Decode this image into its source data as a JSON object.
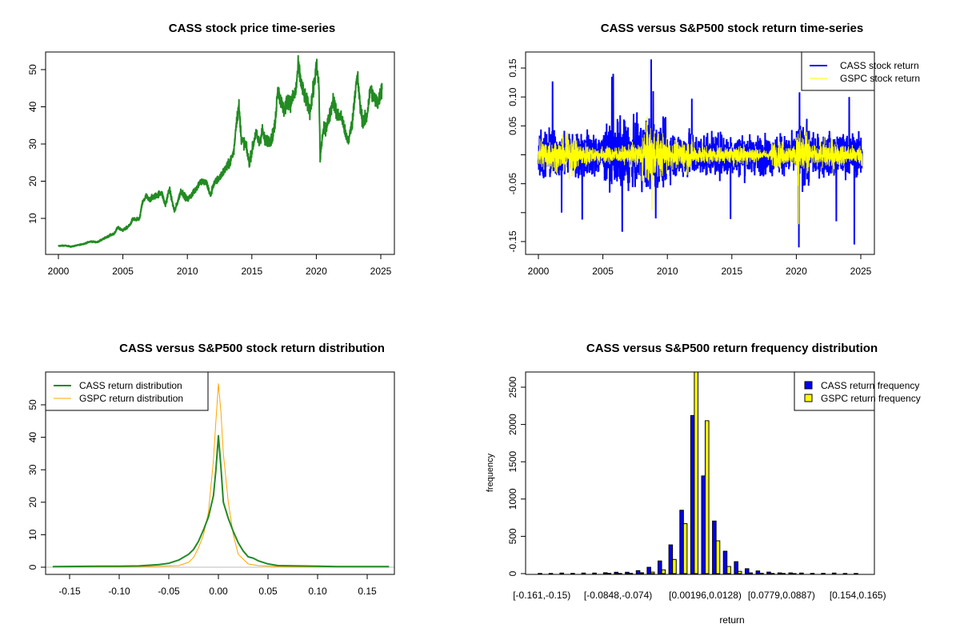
{
  "chart_data": [
    {
      "type": "line",
      "title": "CASS stock price time-series",
      "xlabel": "",
      "ylabel": "",
      "xlim": [
        1999.0,
        2026.0
      ],
      "ylim": [
        0.3,
        54.7
      ],
      "x_ticks": [
        "2000",
        "2005",
        "2010",
        "2015",
        "2020",
        "2025"
      ],
      "y_ticks": [
        "10",
        "20",
        "30",
        "40",
        "50"
      ],
      "color": "#228B22",
      "series": [
        {
          "name": "CASS price",
          "points": [
            [
              2000,
              2.6
            ],
            [
              2000.5,
              2.7
            ],
            [
              2001,
              2.4
            ],
            [
              2001.5,
              2.8
            ],
            [
              2002,
              3.2
            ],
            [
              2002.5,
              3.8
            ],
            [
              2003,
              3.6
            ],
            [
              2003.5,
              4.5
            ],
            [
              2004,
              5.5
            ],
            [
              2004.3,
              5.8
            ],
            [
              2004.6,
              7.5
            ],
            [
              2005,
              6.8
            ],
            [
              2005.5,
              8
            ],
            [
              2005.8,
              10
            ],
            [
              2006,
              9.5
            ],
            [
              2006.3,
              10
            ],
            [
              2006.5,
              14
            ],
            [
              2006.8,
              16
            ],
            [
              2007,
              15
            ],
            [
              2007.5,
              16
            ],
            [
              2008,
              17
            ],
            [
              2008.3,
              13.5
            ],
            [
              2008.6,
              18
            ],
            [
              2009,
              11.8
            ],
            [
              2009.3,
              15
            ],
            [
              2009.5,
              17.5
            ],
            [
              2010,
              15
            ],
            [
              2010.5,
              17
            ],
            [
              2011,
              20
            ],
            [
              2011.5,
              19.5
            ],
            [
              2011.8,
              16
            ],
            [
              2012,
              19
            ],
            [
              2012.5,
              21
            ],
            [
              2013,
              23.5
            ],
            [
              2013.3,
              25
            ],
            [
              2013.6,
              28
            ],
            [
              2013.8,
              36
            ],
            [
              2014,
              40
            ],
            [
              2014.2,
              31
            ],
            [
              2014.5,
              30
            ],
            [
              2014.8,
              25
            ],
            [
              2015,
              28
            ],
            [
              2015.3,
              33
            ],
            [
              2015.6,
              30
            ],
            [
              2015.8,
              34
            ],
            [
              2016,
              31
            ],
            [
              2016.5,
              31
            ],
            [
              2016.8,
              35
            ],
            [
              2017,
              45
            ],
            [
              2017.2,
              42
            ],
            [
              2017.5,
              39
            ],
            [
              2017.8,
              42
            ],
            [
              2018,
              41
            ],
            [
              2018.4,
              44
            ],
            [
              2018.6,
              51
            ],
            [
              2018.9,
              45
            ],
            [
              2019.2,
              42
            ],
            [
              2019.5,
              39
            ],
            [
              2019.8,
              45
            ],
            [
              2020,
              51
            ],
            [
              2020.2,
              46
            ],
            [
              2020.3,
              26
            ],
            [
              2020.5,
              33
            ],
            [
              2020.8,
              35
            ],
            [
              2021,
              37
            ],
            [
              2021.3,
              42
            ],
            [
              2021.6,
              38
            ],
            [
              2022,
              37
            ],
            [
              2022.3,
              32
            ],
            [
              2022.5,
              31
            ],
            [
              2022.8,
              36
            ],
            [
              2023,
              44
            ],
            [
              2023.2,
              48
            ],
            [
              2023.4,
              40
            ],
            [
              2023.6,
              36
            ],
            [
              2023.9,
              37
            ],
            [
              2024.2,
              45
            ],
            [
              2024.5,
              42
            ],
            [
              2024.8,
              41
            ],
            [
              2025,
              44
            ],
            [
              2025.1,
              45
            ]
          ]
        }
      ]
    },
    {
      "type": "line",
      "title": "CASS versus S&P500 stock return time-series",
      "xlim": [
        1999.0,
        2026.0
      ],
      "ylim": [
        -0.172,
        0.178
      ],
      "x_ticks": [
        "2000",
        "2005",
        "2010",
        "2015",
        "2020",
        "2025"
      ],
      "y_ticks": [
        {
          "v": 0.15,
          "label": "0.15"
        },
        {
          "v": 0.1,
          "label": "0.10"
        },
        {
          "v": 0.05,
          "label": "0.05"
        },
        {
          "v": 0,
          "label": ""
        },
        {
          "v": -0.05,
          "label": "-0.05"
        },
        {
          "v": -0.1,
          "label": ""
        },
        {
          "v": -0.15,
          "label": "-0.15"
        }
      ],
      "legend": {
        "position": "top-right",
        "entries": [
          {
            "label": "CASS stock return",
            "color": "#0000FF"
          },
          {
            "label": "GSPC stock return",
            "color": "#FFFF00"
          }
        ]
      },
      "series": [
        {
          "name": "CASS stock return",
          "color": "#0000FF",
          "yearly_volatility": [
            0.022,
            0.02,
            0.018,
            0.02,
            0.018,
            0.022,
            0.028,
            0.025,
            0.03,
            0.025,
            0.02,
            0.02,
            0.018,
            0.017,
            0.018,
            0.018,
            0.016,
            0.016,
            0.016,
            0.016,
            0.025,
            0.017,
            0.018,
            0.017,
            0.018,
            0.018
          ],
          "extremes": [
            [
              2001.1,
              0.127
            ],
            [
              2005.7,
              0.135
            ],
            [
              2005.8,
              0.14
            ],
            [
              2008.75,
              0.165
            ],
            [
              2008.9,
              0.11
            ],
            [
              2020.25,
              0.108
            ],
            [
              2020.2,
              -0.16
            ],
            [
              2006.5,
              -0.133
            ],
            [
              2024.5,
              -0.155
            ],
            [
              2003.4,
              -0.112
            ],
            [
              2014.9,
              -0.111
            ],
            [
              2023.1,
              -0.115
            ],
            [
              2024.1,
              0.1
            ],
            [
              2011.9,
              0.097
            ],
            [
              2001.8,
              -0.1
            ],
            [
              2009.1,
              -0.11
            ]
          ]
        },
        {
          "name": "GSPC stock return",
          "color": "#FFFF00",
          "yearly_volatility": [
            0.014,
            0.013,
            0.016,
            0.01,
            0.007,
            0.007,
            0.007,
            0.01,
            0.025,
            0.017,
            0.011,
            0.014,
            0.008,
            0.007,
            0.007,
            0.009,
            0.008,
            0.004,
            0.011,
            0.008,
            0.022,
            0.008,
            0.014,
            0.009,
            0.008,
            0.01
          ],
          "extremes": [
            [
              2008.8,
              0.11
            ],
            [
              2008.8,
              -0.095
            ],
            [
              2020.2,
              0.09
            ],
            [
              2020.2,
              -0.12
            ]
          ]
        }
      ]
    },
    {
      "type": "line",
      "title": "CASS versus S&P500 stock return distribution",
      "xlim": [
        -0.174,
        0.177
      ],
      "ylim": [
        -2.2,
        60.1
      ],
      "x_ticks": [
        "-0.15",
        "-0.10",
        "-0.05",
        "0.00",
        "0.05",
        "0.10",
        "0.15"
      ],
      "x_tick_values": [
        -0.15,
        -0.1,
        -0.05,
        0,
        0.05,
        0.1,
        0.15
      ],
      "y_ticks": [
        "0",
        "10",
        "20",
        "30",
        "40",
        "50"
      ],
      "legend": {
        "position": "top-left",
        "entries": [
          {
            "label": "CASS return distribution",
            "color": "#228B22"
          },
          {
            "label": "GSPC return distribution",
            "color": "#FFA500"
          }
        ]
      },
      "series": [
        {
          "name": "CASS return distribution",
          "color": "#228B22",
          "points": [
            [
              -0.167,
              0.2
            ],
            [
              -0.12,
              0.3
            ],
            [
              -0.1,
              0.3
            ],
            [
              -0.08,
              0.4
            ],
            [
              -0.06,
              0.8
            ],
            [
              -0.05,
              1.2
            ],
            [
              -0.04,
              2.2
            ],
            [
              -0.03,
              4
            ],
            [
              -0.025,
              5.5
            ],
            [
              -0.02,
              8
            ],
            [
              -0.015,
              11.5
            ],
            [
              -0.01,
              15.5
            ],
            [
              -0.005,
              22
            ],
            [
              -0.0025,
              30
            ],
            [
              0,
              40.5
            ],
            [
              0.0025,
              31
            ],
            [
              0.005,
              20
            ],
            [
              0.01,
              15
            ],
            [
              0.015,
              11
            ],
            [
              0.02,
              7.5
            ],
            [
              0.025,
              5
            ],
            [
              0.03,
              3.2
            ],
            [
              0.035,
              2.8
            ],
            [
              0.04,
              2
            ],
            [
              0.05,
              1
            ],
            [
              0.06,
              0.5
            ],
            [
              0.08,
              0.4
            ],
            [
              0.1,
              0.3
            ],
            [
              0.12,
              0.2
            ],
            [
              0.172,
              0.2
            ]
          ]
        },
        {
          "name": "GSPC return distribution",
          "color": "#FFA500",
          "points": [
            [
              -0.167,
              0
            ],
            [
              -0.1,
              0.1
            ],
            [
              -0.06,
              0.3
            ],
            [
              -0.04,
              0.5
            ],
            [
              -0.03,
              1.5
            ],
            [
              -0.025,
              3
            ],
            [
              -0.02,
              6
            ],
            [
              -0.015,
              10
            ],
            [
              -0.01,
              17
            ],
            [
              -0.005,
              33
            ],
            [
              -0.0025,
              45
            ],
            [
              0,
              56.5
            ],
            [
              0.0025,
              48
            ],
            [
              0.005,
              35
            ],
            [
              0.01,
              20
            ],
            [
              0.015,
              10
            ],
            [
              0.02,
              4
            ],
            [
              0.025,
              2.5
            ],
            [
              0.03,
              1
            ],
            [
              0.04,
              0.5
            ],
            [
              0.06,
              0.2
            ],
            [
              0.1,
              0.05
            ],
            [
              0.172,
              0
            ]
          ]
        }
      ],
      "baseline_color": "#BEBEBE"
    },
    {
      "type": "bar",
      "title": "CASS versus S&P500 return frequency distribution",
      "xlabel": "return",
      "ylabel": "frequency",
      "ylim": [
        0,
        2704
      ],
      "y_ticks": [
        "0",
        "500",
        "1000",
        "1500",
        "2000",
        "2500"
      ],
      "bin_count": 30,
      "x_tick_labels": [
        {
          "bin": 0,
          "label": "[-0.161,-0.15)"
        },
        {
          "bin": 7,
          "label": "[-0.0848,-0.074)"
        },
        {
          "bin": 15,
          "label": "[0.00196,0.0128)"
        },
        {
          "bin": 22,
          "label": "[0.0779,0.0887)"
        },
        {
          "bin": 29,
          "label": "[0.154,0.165)"
        }
      ],
      "legend": {
        "position": "top-right",
        "entries": [
          {
            "label": "CASS return frequency",
            "color": "#0000FF"
          },
          {
            "label": "GSPC return frequency",
            "color": "#FFFF00"
          }
        ]
      },
      "series": [
        {
          "name": "CASS return frequency",
          "color": "#0000FF",
          "values": [
            2,
            2,
            8,
            3,
            8,
            8,
            12,
            18,
            18,
            40,
            85,
            170,
            385,
            850,
            2120,
            1310,
            705,
            300,
            160,
            65,
            35,
            20,
            10,
            10,
            8,
            3,
            3,
            8,
            2,
            2
          ]
        },
        {
          "name": "GSPC return frequency",
          "color": "#FFFF00",
          "values": [
            0,
            0,
            0,
            0,
            0,
            0,
            3,
            2,
            3,
            12,
            20,
            50,
            190,
            670,
            2900,
            2050,
            440,
            95,
            30,
            10,
            5,
            2,
            2,
            1,
            0,
            0,
            0,
            0,
            0,
            0
          ]
        }
      ]
    }
  ]
}
